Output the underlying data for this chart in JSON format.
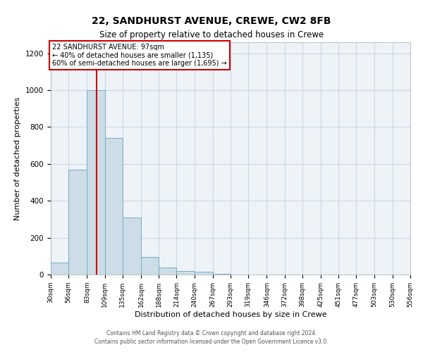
{
  "title": "22, SANDHURST AVENUE, CREWE, CW2 8FB",
  "subtitle": "Size of property relative to detached houses in Crewe",
  "xlabel": "Distribution of detached houses by size in Crewe",
  "ylabel": "Number of detached properties",
  "bar_color": "#ccdde8",
  "bar_edge_color": "#7aaac8",
  "bin_edges": [
    30,
    56,
    83,
    109,
    135,
    162,
    188,
    214,
    240,
    267,
    293,
    319,
    346,
    372,
    398,
    425,
    451,
    477,
    503,
    530,
    556
  ],
  "bar_heights": [
    65,
    570,
    1000,
    740,
    310,
    95,
    40,
    20,
    15,
    5,
    0,
    0,
    0,
    0,
    0,
    0,
    0,
    0,
    0,
    0
  ],
  "tick_labels": [
    "30sqm",
    "56sqm",
    "83sqm",
    "109sqm",
    "135sqm",
    "162sqm",
    "188sqm",
    "214sqm",
    "240sqm",
    "267sqm",
    "293sqm",
    "319sqm",
    "346sqm",
    "372sqm",
    "398sqm",
    "425sqm",
    "451sqm",
    "477sqm",
    "503sqm",
    "530sqm",
    "556sqm"
  ],
  "property_line_x": 97,
  "property_line_color": "#cc0000",
  "ylim": [
    0,
    1260
  ],
  "yticks": [
    0,
    200,
    400,
    600,
    800,
    1000,
    1200
  ],
  "annotation_text": "22 SANDHURST AVENUE: 97sqm\n← 40% of detached houses are smaller (1,135)\n60% of semi-detached houses are larger (1,695) →",
  "annotation_box_color": "#ffffff",
  "annotation_box_edge": "#cc0000",
  "footer_line1": "Contains HM Land Registry data © Crown copyright and database right 2024.",
  "footer_line2": "Contains public sector information licensed under the Open Government Licence v3.0.",
  "background_color": "#ffffff",
  "grid_color": "#ccd8e4",
  "plot_bg_color": "#eef3f8"
}
